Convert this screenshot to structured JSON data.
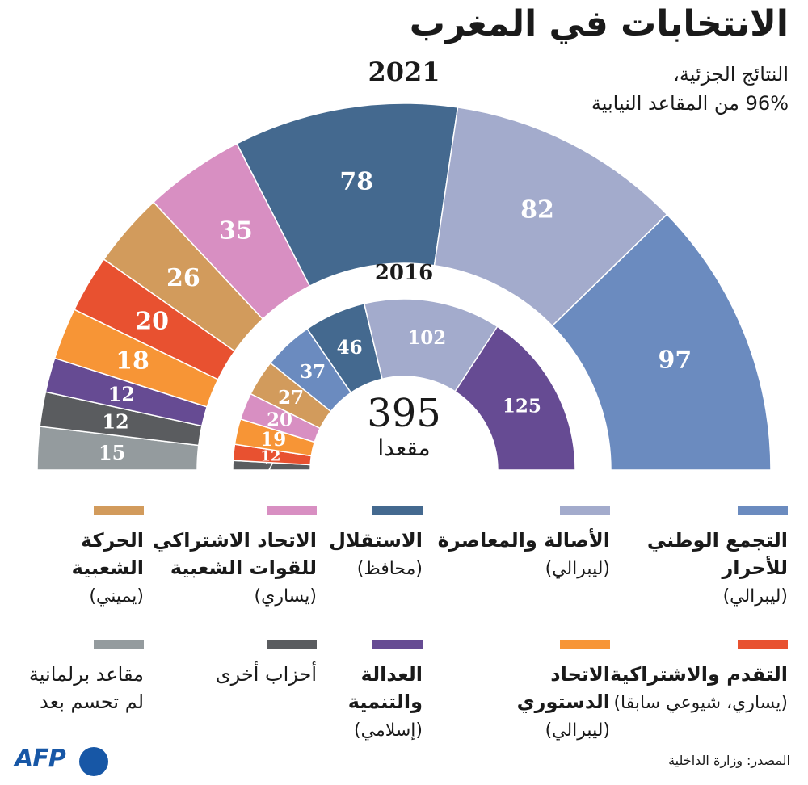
{
  "title": "الانتخابات في المغرب",
  "subtitle_line1": "النتائج الجزئية،",
  "subtitle_line2": "96% من المقاعد النيابية",
  "total_value": "395",
  "total_unit": "مقعدا",
  "source": "المصدر: وزارة الداخلية",
  "logo": "AFP",
  "colors": {
    "rni": "#6b8bbf",
    "pam": "#a3abcc",
    "istiqlal": "#44698f",
    "usfp": "#d88fc2",
    "mp": "#d29b5c",
    "pps": "#e85130",
    "uc": "#f79536",
    "pjd": "#664b93",
    "other": "#5a5c5f",
    "undecided": "#949b9e"
  },
  "legend": [
    {
      "key": "rni",
      "name_lines": [
        "التجمع الوطني",
        "للأحرار"
      ],
      "desc": "(ليبرالي)"
    },
    {
      "key": "pam",
      "name_lines": [
        "الأصالة والمعاصرة"
      ],
      "desc": "(ليبرالي)"
    },
    {
      "key": "istiqlal",
      "name_lines": [
        "الاستقلال"
      ],
      "desc": "(محافظ)"
    },
    {
      "key": "usfp",
      "name_lines": [
        "الاتحاد الاشتراكي",
        "للقوات الشعبية"
      ],
      "desc": "(يساري)"
    },
    {
      "key": "mp",
      "name_lines": [
        "الحركة",
        "الشعبية"
      ],
      "desc": "(يميني)"
    },
    {
      "key": "pps",
      "name_lines": [
        "التقدم والاشتراكية"
      ],
      "desc": "(يساري، شيوعي سابقا)"
    },
    {
      "key": "uc",
      "name_lines": [
        "الاتحاد",
        "الدستوري"
      ],
      "desc": "(ليبرالي)"
    },
    {
      "key": "pjd",
      "name_lines": [
        "العدالة",
        "والتنمية"
      ],
      "desc": "(إسلامي)"
    },
    {
      "key": "other",
      "name_lines": [
        "أحزاب أخرى"
      ],
      "desc": ""
    },
    {
      "key": "undecided",
      "name_lines": [
        "مقاعد برلمانية",
        "لم تحسم بعد"
      ],
      "desc": ""
    }
  ],
  "chart_data": {
    "type": "parliament-arc",
    "series": [
      {
        "name": "2021",
        "segments": [
          {
            "party": "undecided",
            "value": 15
          },
          {
            "party": "other",
            "value": 12
          },
          {
            "party": "pjd",
            "value": 12
          },
          {
            "party": "uc",
            "value": 18
          },
          {
            "party": "pps",
            "value": 20
          },
          {
            "party": "mp",
            "value": 26
          },
          {
            "party": "usfp",
            "value": 35
          },
          {
            "party": "istiqlal",
            "value": 78
          },
          {
            "party": "pam",
            "value": 82
          },
          {
            "party": "rni",
            "value": 97
          }
        ]
      },
      {
        "name": "2016",
        "segments": [
          {
            "party": "other",
            "value": 7
          },
          {
            "party": "pps",
            "value": 12
          },
          {
            "party": "uc",
            "value": 19
          },
          {
            "party": "usfp",
            "value": 20
          },
          {
            "party": "mp",
            "value": 27
          },
          {
            "party": "rni",
            "value": 37
          },
          {
            "party": "istiqlal",
            "value": 46
          },
          {
            "party": "pam",
            "value": 102
          },
          {
            "party": "pjd",
            "value": 125
          }
        ]
      }
    ]
  }
}
